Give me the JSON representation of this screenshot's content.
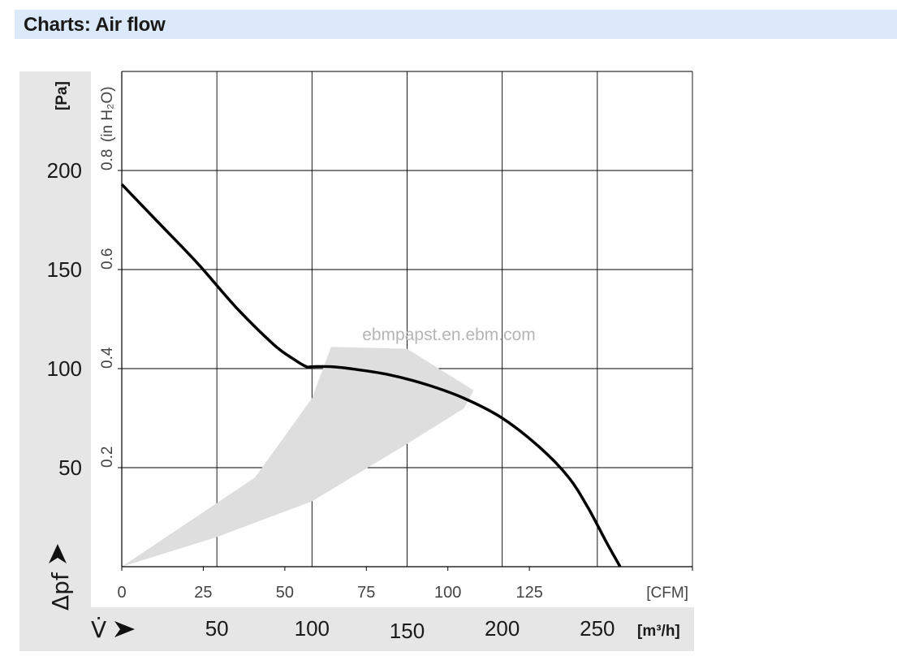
{
  "header": {
    "title": "Charts: Air flow"
  },
  "chart_data": {
    "type": "line",
    "title": "",
    "watermark": "ebmpapst.en.ebm.com",
    "y_primary": {
      "unit": "[Pa]",
      "symbol": "Δpf",
      "ticks": [
        50,
        100,
        150,
        200
      ],
      "range": [
        0,
        250
      ]
    },
    "y_secondary": {
      "unit": "(in H₂O)",
      "ticks": [
        "0.2",
        "0.4",
        "0.6",
        "0.8"
      ],
      "range": [
        0,
        1.0
      ]
    },
    "x_primary": {
      "unit": "[CFM]",
      "ticks": [
        0,
        25,
        50,
        75,
        100,
        125
      ],
      "range": [
        0,
        175
      ]
    },
    "x_secondary": {
      "unit": "[m³/h]",
      "symbol": "V̇",
      "ticks": [
        50,
        100,
        150,
        200,
        250
      ],
      "range": [
        0,
        300
      ]
    },
    "grid": true,
    "colors": {
      "curve": "#000000",
      "band": "#dedede",
      "axis_band": "#e6e6e6"
    },
    "series": [
      {
        "x_unit": "m³/h",
        "y_unit": "Pa",
        "x": [
          0,
          20,
          40,
          60,
          80,
          90,
          97,
          100,
          110,
          120,
          140,
          160,
          180,
          200,
          220,
          235,
          245,
          255,
          262
        ],
        "y": [
          193,
          173,
          153,
          131,
          112,
          105,
          101,
          101,
          101,
          100,
          97,
          92,
          85,
          75,
          60,
          45,
          30,
          12,
          0
        ]
      }
    ],
    "operating_region": {
      "x": [
        0,
        70,
        100,
        110,
        150,
        185,
        180,
        150,
        100,
        50,
        0
      ],
      "y": [
        0,
        45,
        85,
        111,
        110,
        89,
        80,
        62,
        33,
        15,
        0
      ]
    }
  }
}
